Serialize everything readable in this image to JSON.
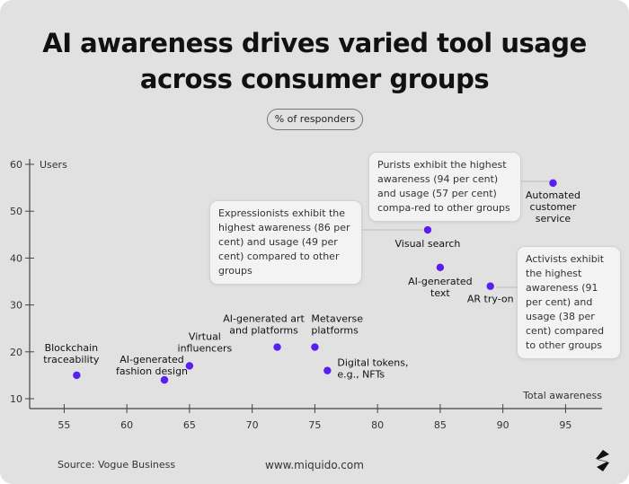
{
  "chart_data": {
    "type": "scatter",
    "title": "AI awareness drives varied tool usage across consumer groups",
    "subtitle": "% of responders",
    "xlabel": "Total awareness",
    "ylabel": "Users",
    "xlim": [
      52,
      98
    ],
    "ylim": [
      8,
      62
    ],
    "xticks": [
      55,
      60,
      65,
      70,
      75,
      80,
      85,
      90,
      95
    ],
    "yticks": [
      10,
      20,
      30,
      40,
      50,
      60
    ],
    "grid": false,
    "marker_color": "#5a1ef0",
    "points": [
      {
        "label": [
          "Blockchain",
          "traceability"
        ],
        "x": 56,
        "y": 15
      },
      {
        "label": [
          "AI-generated",
          "fashion design"
        ],
        "x": 63,
        "y": 14
      },
      {
        "label": [
          "Virtual",
          "influencers"
        ],
        "x": 65,
        "y": 17
      },
      {
        "label": [
          "AI-generated art",
          "and platforms"
        ],
        "x": 72,
        "y": 21
      },
      {
        "label": [
          "Metaverse",
          "platforms"
        ],
        "x": 75,
        "y": 21
      },
      {
        "label": [
          "Digital tokens,",
          "e.g., NFTs"
        ],
        "x": 76,
        "y": 16
      },
      {
        "label": [
          "Visual search"
        ],
        "x": 84,
        "y": 46
      },
      {
        "label": [
          "AI-generated",
          "text"
        ],
        "x": 85,
        "y": 38
      },
      {
        "label": [
          "AR try-on"
        ],
        "x": 89,
        "y": 34
      },
      {
        "label": [
          "Automated",
          "customer",
          "service"
        ],
        "x": 94,
        "y": 56
      }
    ],
    "annotations": [
      "Purists exhibit the highest awareness (94 per cent) and usage (57 per cent) compa-red to other groups",
      "Expressionists exhibit the highest awareness (86 per cent) and usage (49 per cent) compared to other groups",
      "Activists exhibit the highest awareness (91 per cent) and usage (38 per cent) compared to other groups"
    ]
  },
  "footer": {
    "source": "Source: Vogue Business",
    "url": "www.miquido.com"
  }
}
